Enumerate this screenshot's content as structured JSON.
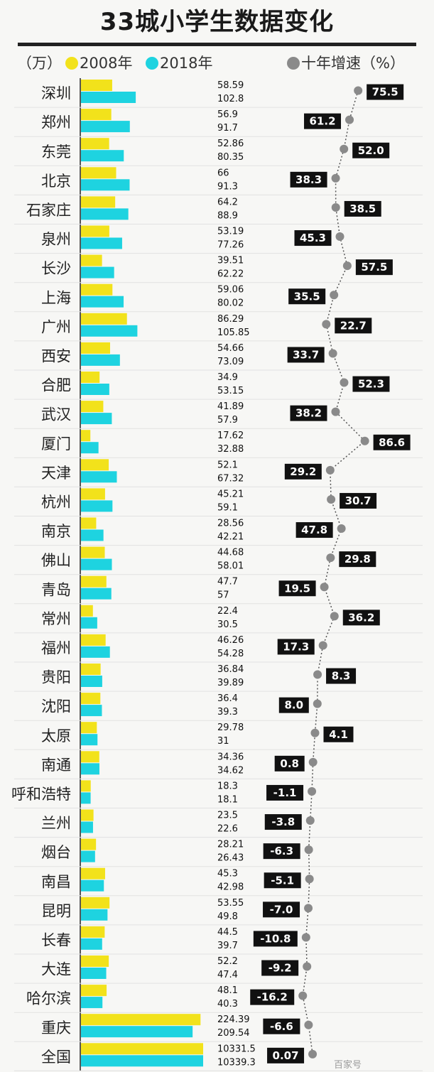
{
  "title": "33城小学生数据变化",
  "legend": {
    "unit": "（万）",
    "series_2008": "2008年",
    "series_2018": "2018年",
    "growth": "十年增速（%）"
  },
  "colors": {
    "y2008": "#f2e21b",
    "y2018": "#1ed3e0",
    "growth_dot": "#8a8a8a",
    "label_box": "#111111",
    "label_text_pos": "#6fe3ee",
    "label_text_neg": "#ffffff"
  },
  "watermark": "百家号",
  "chart_data": {
    "type": "bar",
    "orientation": "horizontal",
    "unit": "万",
    "categories": [
      "深圳",
      "郑州",
      "东莞",
      "北京",
      "石家庄",
      "泉州",
      "长沙",
      "上海",
      "广州",
      "西安",
      "合肥",
      "武汉",
      "厦门",
      "天津",
      "杭州",
      "南京",
      "佛山",
      "青岛",
      "常州",
      "福州",
      "贵阳",
      "沈阳",
      "太原",
      "南通",
      "呼和浩特",
      "兰州",
      "烟台",
      "南昌",
      "昆明",
      "长春",
      "大连",
      "哈尔滨",
      "重庆",
      "全国"
    ],
    "series": [
      {
        "name": "2008年",
        "values": [
          "58.59",
          "56.9",
          "52.86",
          "66",
          "64.2",
          "53.19",
          "39.51",
          "59.06",
          "86.29",
          "54.66",
          "34.9",
          "41.89",
          "17.62",
          "52.1",
          "45.21",
          "28.56",
          "44.68",
          "47.7",
          "22.4",
          "46.26",
          "36.84",
          "36.4",
          "29.78",
          "34.36",
          "18.3",
          "23.5",
          "28.21",
          "45.3",
          "53.55",
          "44.5",
          "52.2",
          "48.1",
          "224.39",
          "10331.5"
        ]
      },
      {
        "name": "2018年",
        "values": [
          "102.8",
          "91.7",
          "80.35",
          "91.3",
          "88.9",
          "77.26",
          "62.22",
          "80.02",
          "105.85",
          "73.09",
          "53.15",
          "57.9",
          "32.88",
          "67.32",
          "59.1",
          "42.21",
          "58.01",
          "57",
          "30.5",
          "54.28",
          "39.89",
          "39.3",
          "31",
          "34.62",
          "18.1",
          "22.6",
          "26.43",
          "42.98",
          "49.8",
          "39.7",
          "47.4",
          "40.3",
          "209.54",
          "10339.3"
        ]
      }
    ],
    "growth_series": {
      "name": "十年增速（%）",
      "values": [
        "75.5",
        "61.2",
        "52.0",
        "38.3",
        "38.5",
        "45.3",
        "57.5",
        "35.5",
        "22.7",
        "33.7",
        "52.3",
        "38.2",
        "86.6",
        "29.2",
        "30.7",
        "47.8",
        "29.8",
        "19.5",
        "36.2",
        "17.3",
        "8.3",
        "8.0",
        "4.1",
        "0.8",
        "-1.1",
        "-3.8",
        "-6.3",
        "-5.1",
        "-7.0",
        "-10.8",
        "-9.2",
        "-16.2",
        "-6.6",
        "0.07"
      ]
    }
  }
}
